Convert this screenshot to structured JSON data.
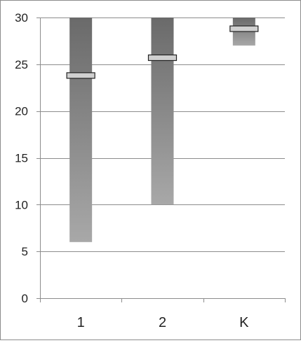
{
  "chart_data": {
    "type": "floating-bar",
    "title": "",
    "xlabel": "",
    "ylabel": "",
    "categories": [
      "1",
      "2",
      "K"
    ],
    "ranges": [
      {
        "category": "1",
        "low": 6,
        "high": 30,
        "marker": 23.8
      },
      {
        "category": "2",
        "low": 10,
        "high": 30,
        "marker": 25.7
      },
      {
        "category": "K",
        "low": 27,
        "high": 30,
        "marker": 28.8
      }
    ],
    "ylim": [
      0,
      30
    ],
    "yticks": [
      0,
      5,
      10,
      15,
      20,
      25,
      30
    ],
    "ytick_labels": [
      "0",
      "5",
      "10",
      "15",
      "20",
      "25",
      "30"
    ],
    "grid": true,
    "legend": "none",
    "colors": {
      "bar_top": "#6a6a6a",
      "bar_bottom": "#a8a8a8",
      "marker_fill": "#d0d0d0",
      "marker_stroke": "#222222",
      "grid": "#8c8c8c",
      "axis": "#8c8c8c"
    }
  }
}
